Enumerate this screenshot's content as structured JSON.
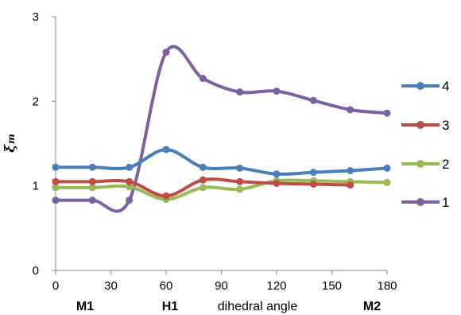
{
  "chart_data": {
    "type": "line",
    "xlabel": "dihedral angle",
    "ylabel": "ξ",
    "ylabel_sub": "m",
    "xlim": [
      0,
      180
    ],
    "ylim": [
      0,
      3
    ],
    "x_ticks": [
      0,
      30,
      60,
      90,
      120,
      150,
      180
    ],
    "y_ticks": [
      0,
      1,
      2,
      3
    ],
    "category_labels": [
      {
        "x": 30,
        "label": "M1"
      },
      {
        "x": 60,
        "label": "H1"
      },
      {
        "x": 150,
        "label": "M2"
      }
    ],
    "grid": false,
    "legend_position": "right",
    "series": [
      {
        "name": "4",
        "color": "#4A7EBB",
        "x": [
          0,
          20,
          40,
          60,
          80,
          100,
          120,
          140,
          160,
          180
        ],
        "y": [
          1.22,
          1.22,
          1.22,
          1.43,
          1.22,
          1.21,
          1.14,
          1.16,
          1.18,
          1.21
        ]
      },
      {
        "name": "3",
        "color": "#BE4B48",
        "x": [
          0,
          20,
          40,
          60,
          80,
          100,
          120,
          140,
          160
        ],
        "y": [
          1.05,
          1.05,
          1.05,
          0.88,
          1.07,
          1.05,
          1.03,
          1.02,
          1.01
        ]
      },
      {
        "name": "2",
        "color": "#98B954",
        "x": [
          0,
          20,
          40,
          60,
          80,
          100,
          120,
          140,
          160,
          180
        ],
        "y": [
          0.98,
          0.98,
          0.99,
          0.84,
          0.98,
          0.96,
          1.06,
          1.06,
          1.05,
          1.04
        ]
      },
      {
        "name": "1",
        "color": "#7D60A0",
        "x": [
          0,
          20,
          40,
          60,
          80,
          100,
          120,
          140,
          160,
          180
        ],
        "y": [
          0.83,
          0.83,
          0.83,
          2.58,
          2.27,
          2.11,
          2.12,
          2.01,
          1.9,
          1.86
        ]
      }
    ]
  }
}
